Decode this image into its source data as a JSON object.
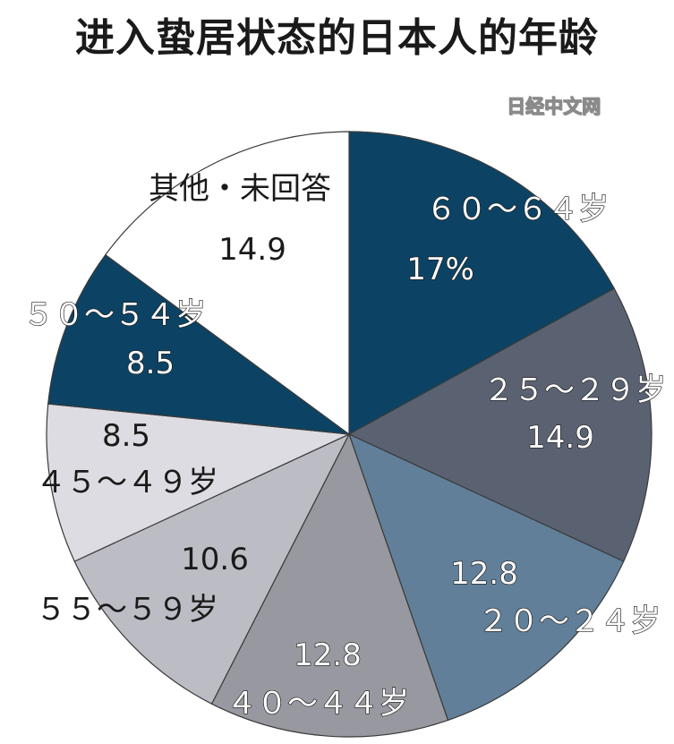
{
  "title": "进入蛰居状态的日本人的年龄",
  "source": "日经中文网",
  "chart_data": {
    "type": "pie",
    "title": "进入蛰居状态的日本人的年龄",
    "start_angle_deg": 0,
    "direction": "clockwise",
    "slices": [
      {
        "label": "６０～６４岁",
        "value": 17,
        "value_label": "17%",
        "color": "#0c4364",
        "label_style": "light"
      },
      {
        "label": "２５～２９岁",
        "value": 14.9,
        "value_label": "14.9",
        "color": "#5a6272",
        "label_style": "light"
      },
      {
        "label": "２０～２４岁",
        "value": 12.8,
        "value_label": "12.8",
        "color": "#617f98",
        "label_style": "light"
      },
      {
        "label": "４０～４４岁",
        "value": 12.8,
        "value_label": "12.8",
        "color": "#9898a0",
        "label_style": "light"
      },
      {
        "label": "５５～５９岁",
        "value": 10.6,
        "value_label": "10.6",
        "color": "#bcbcc4",
        "label_style": "dark"
      },
      {
        "label": "４５～４９岁",
        "value": 8.5,
        "value_label": "8.5",
        "color": "#dcdce2",
        "label_style": "dark"
      },
      {
        "label": "５０～５４岁",
        "value": 8.5,
        "value_label": "8.5",
        "color": "#0c4364",
        "label_style": "light"
      },
      {
        "label": "其他・未回答",
        "value": 14.9,
        "value_label": "14.9",
        "color": "#ffffff",
        "label_style": "dark"
      }
    ]
  }
}
